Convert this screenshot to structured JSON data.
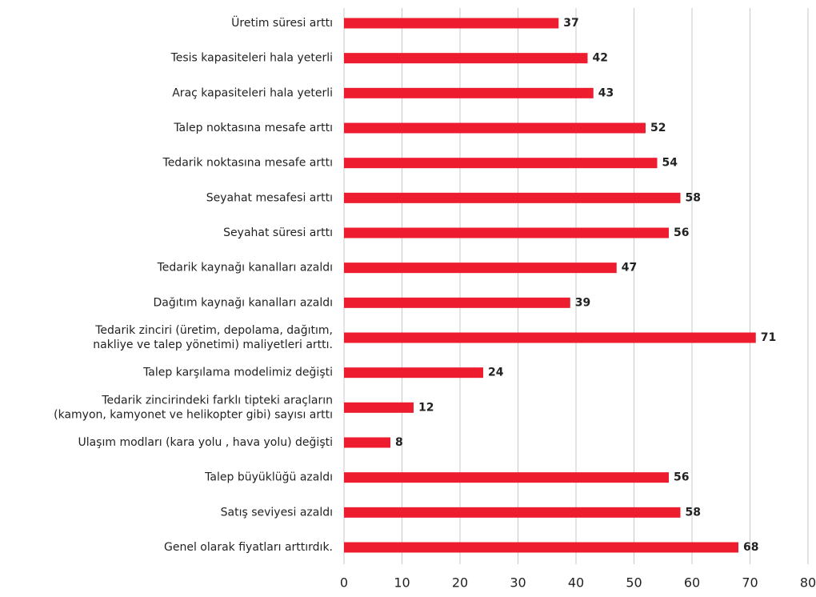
{
  "chart_data": {
    "type": "bar",
    "orientation": "horizontal",
    "categories": [
      "Üretim süresi arttı",
      "Tesis kapasiteleri hala yeterli",
      "Araç kapasiteleri hala yeterli",
      "Talep noktasına mesafe arttı",
      "Tedarik noktasına mesafe arttı",
      "Seyahat mesafesi arttı",
      "Seyahat süresi arttı",
      "Tedarik kaynağı kanalları azaldı",
      "Dağıtım kaynağı kanalları azaldı",
      "Tedarik zinciri (üretim, depolama, dağıtım,\nnakliye ve talep yönetimi) maliyetleri arttı.",
      "Talep karşılama modelimiz değişti",
      "Tedarik zincirindeki farklı tipteki araçların\n(kamyon, kamyonet ve helikopter gibi) sayısı arttı",
      "Ulaşım modları (kara yolu , hava yolu) değişti",
      "Talep büyüklüğü azaldı",
      "Satış seviyesi azaldı",
      "Genel olarak fiyatları arttırdık."
    ],
    "values": [
      37,
      42,
      43,
      52,
      54,
      58,
      56,
      47,
      39,
      71,
      24,
      12,
      8,
      56,
      58,
      68
    ],
    "color": "#ed1c2e",
    "xlim": [
      0,
      80
    ],
    "xticks": [
      0,
      10,
      20,
      30,
      40,
      50,
      60,
      70,
      80
    ],
    "grid": true
  }
}
